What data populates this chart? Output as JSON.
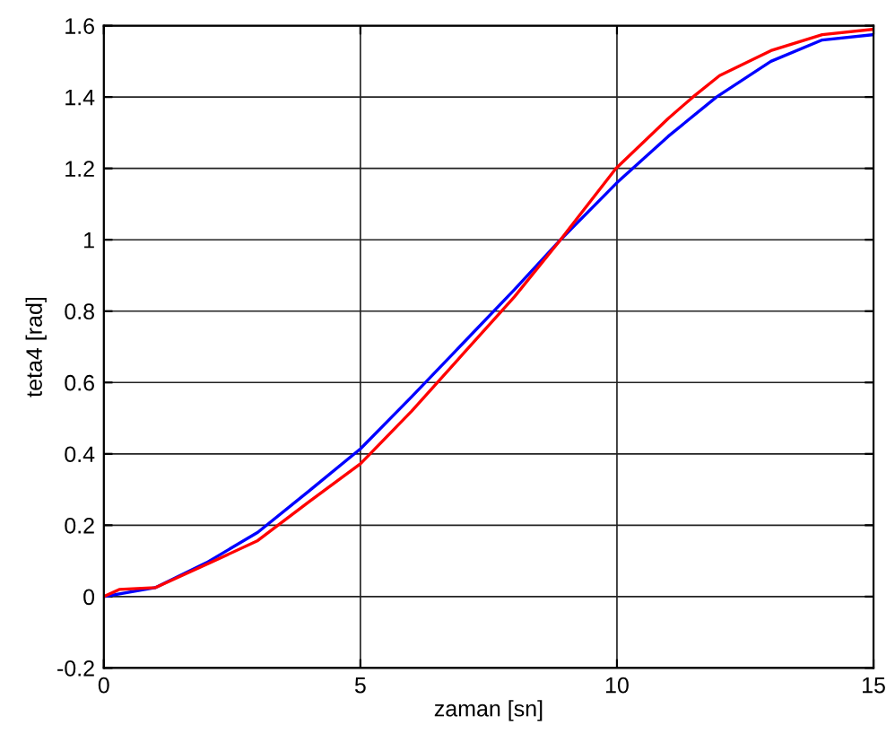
{
  "chart_data": {
    "type": "line",
    "xlabel": "zaman [sn]",
    "ylabel": "teta4 [rad]",
    "xlim": [
      0,
      15
    ],
    "ylim": [
      -0.2,
      1.6
    ],
    "xticks": [
      0,
      5,
      10,
      15
    ],
    "yticks": [
      -0.2,
      0,
      0.2,
      0.4,
      0.6,
      0.8,
      1,
      1.2,
      1.4,
      1.6
    ],
    "grid": true,
    "marker": "none",
    "line_style": "solid",
    "series": [
      {
        "color": "#0000ff",
        "x": [
          0,
          1,
          2,
          3,
          4,
          5,
          6,
          7,
          8,
          8.9,
          10,
          11,
          11.94,
          13,
          14,
          15
        ],
        "values": [
          0,
          0.025,
          0.095,
          0.18,
          0.296,
          0.414,
          0.56,
          0.71,
          0.86,
          1.0,
          1.16,
          1.29,
          1.4,
          1.5,
          1.56,
          1.575
        ]
      },
      {
        "color": "#ff0000",
        "x": [
          0,
          0.3,
          1,
          2,
          3,
          4,
          5,
          6,
          7,
          8,
          8.9,
          9.98,
          11,
          11.48,
          12,
          13,
          14,
          15
        ],
        "values": [
          0,
          0.02,
          0.025,
          0.09,
          0.157,
          0.266,
          0.372,
          0.52,
          0.68,
          0.84,
          1.0,
          1.2,
          1.34,
          1.4,
          1.46,
          1.53,
          1.575,
          1.59
        ]
      }
    ]
  }
}
